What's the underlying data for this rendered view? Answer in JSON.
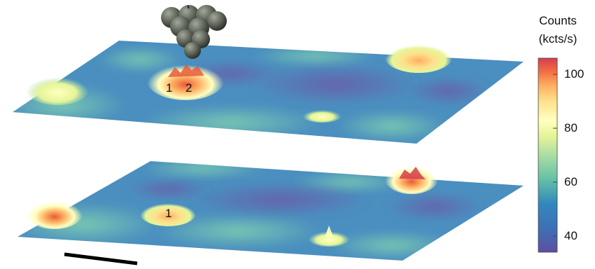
{
  "colorbar": {
    "title_line1": "Counts",
    "title_line2": "(kcts/s)",
    "ticks": [
      {
        "value": 100,
        "label": "100"
      },
      {
        "value": 80,
        "label": "80"
      },
      {
        "value": 60,
        "label": "60"
      },
      {
        "value": 40,
        "label": "40"
      }
    ],
    "range": [
      34,
      106
    ],
    "colors": [
      "#5e4fa2",
      "#3f6fb5",
      "#3288bd",
      "#66c2a5",
      "#abdda4",
      "#e6f598",
      "#ffffbf",
      "#fee08b",
      "#fdae61",
      "#f46d43",
      "#d53e4f"
    ]
  },
  "maps": [
    {
      "id": "top",
      "peaks": [
        {
          "label": "1",
          "value": 100
        },
        {
          "label": "2",
          "value": 104
        }
      ]
    },
    {
      "id": "bottom",
      "peaks": [
        {
          "label": "1",
          "value": 95
        }
      ]
    }
  ],
  "probe": {
    "type": "nanoparticle-cluster",
    "color": "#5c6257"
  },
  "scale_bar": {
    "color": "#000000"
  }
}
